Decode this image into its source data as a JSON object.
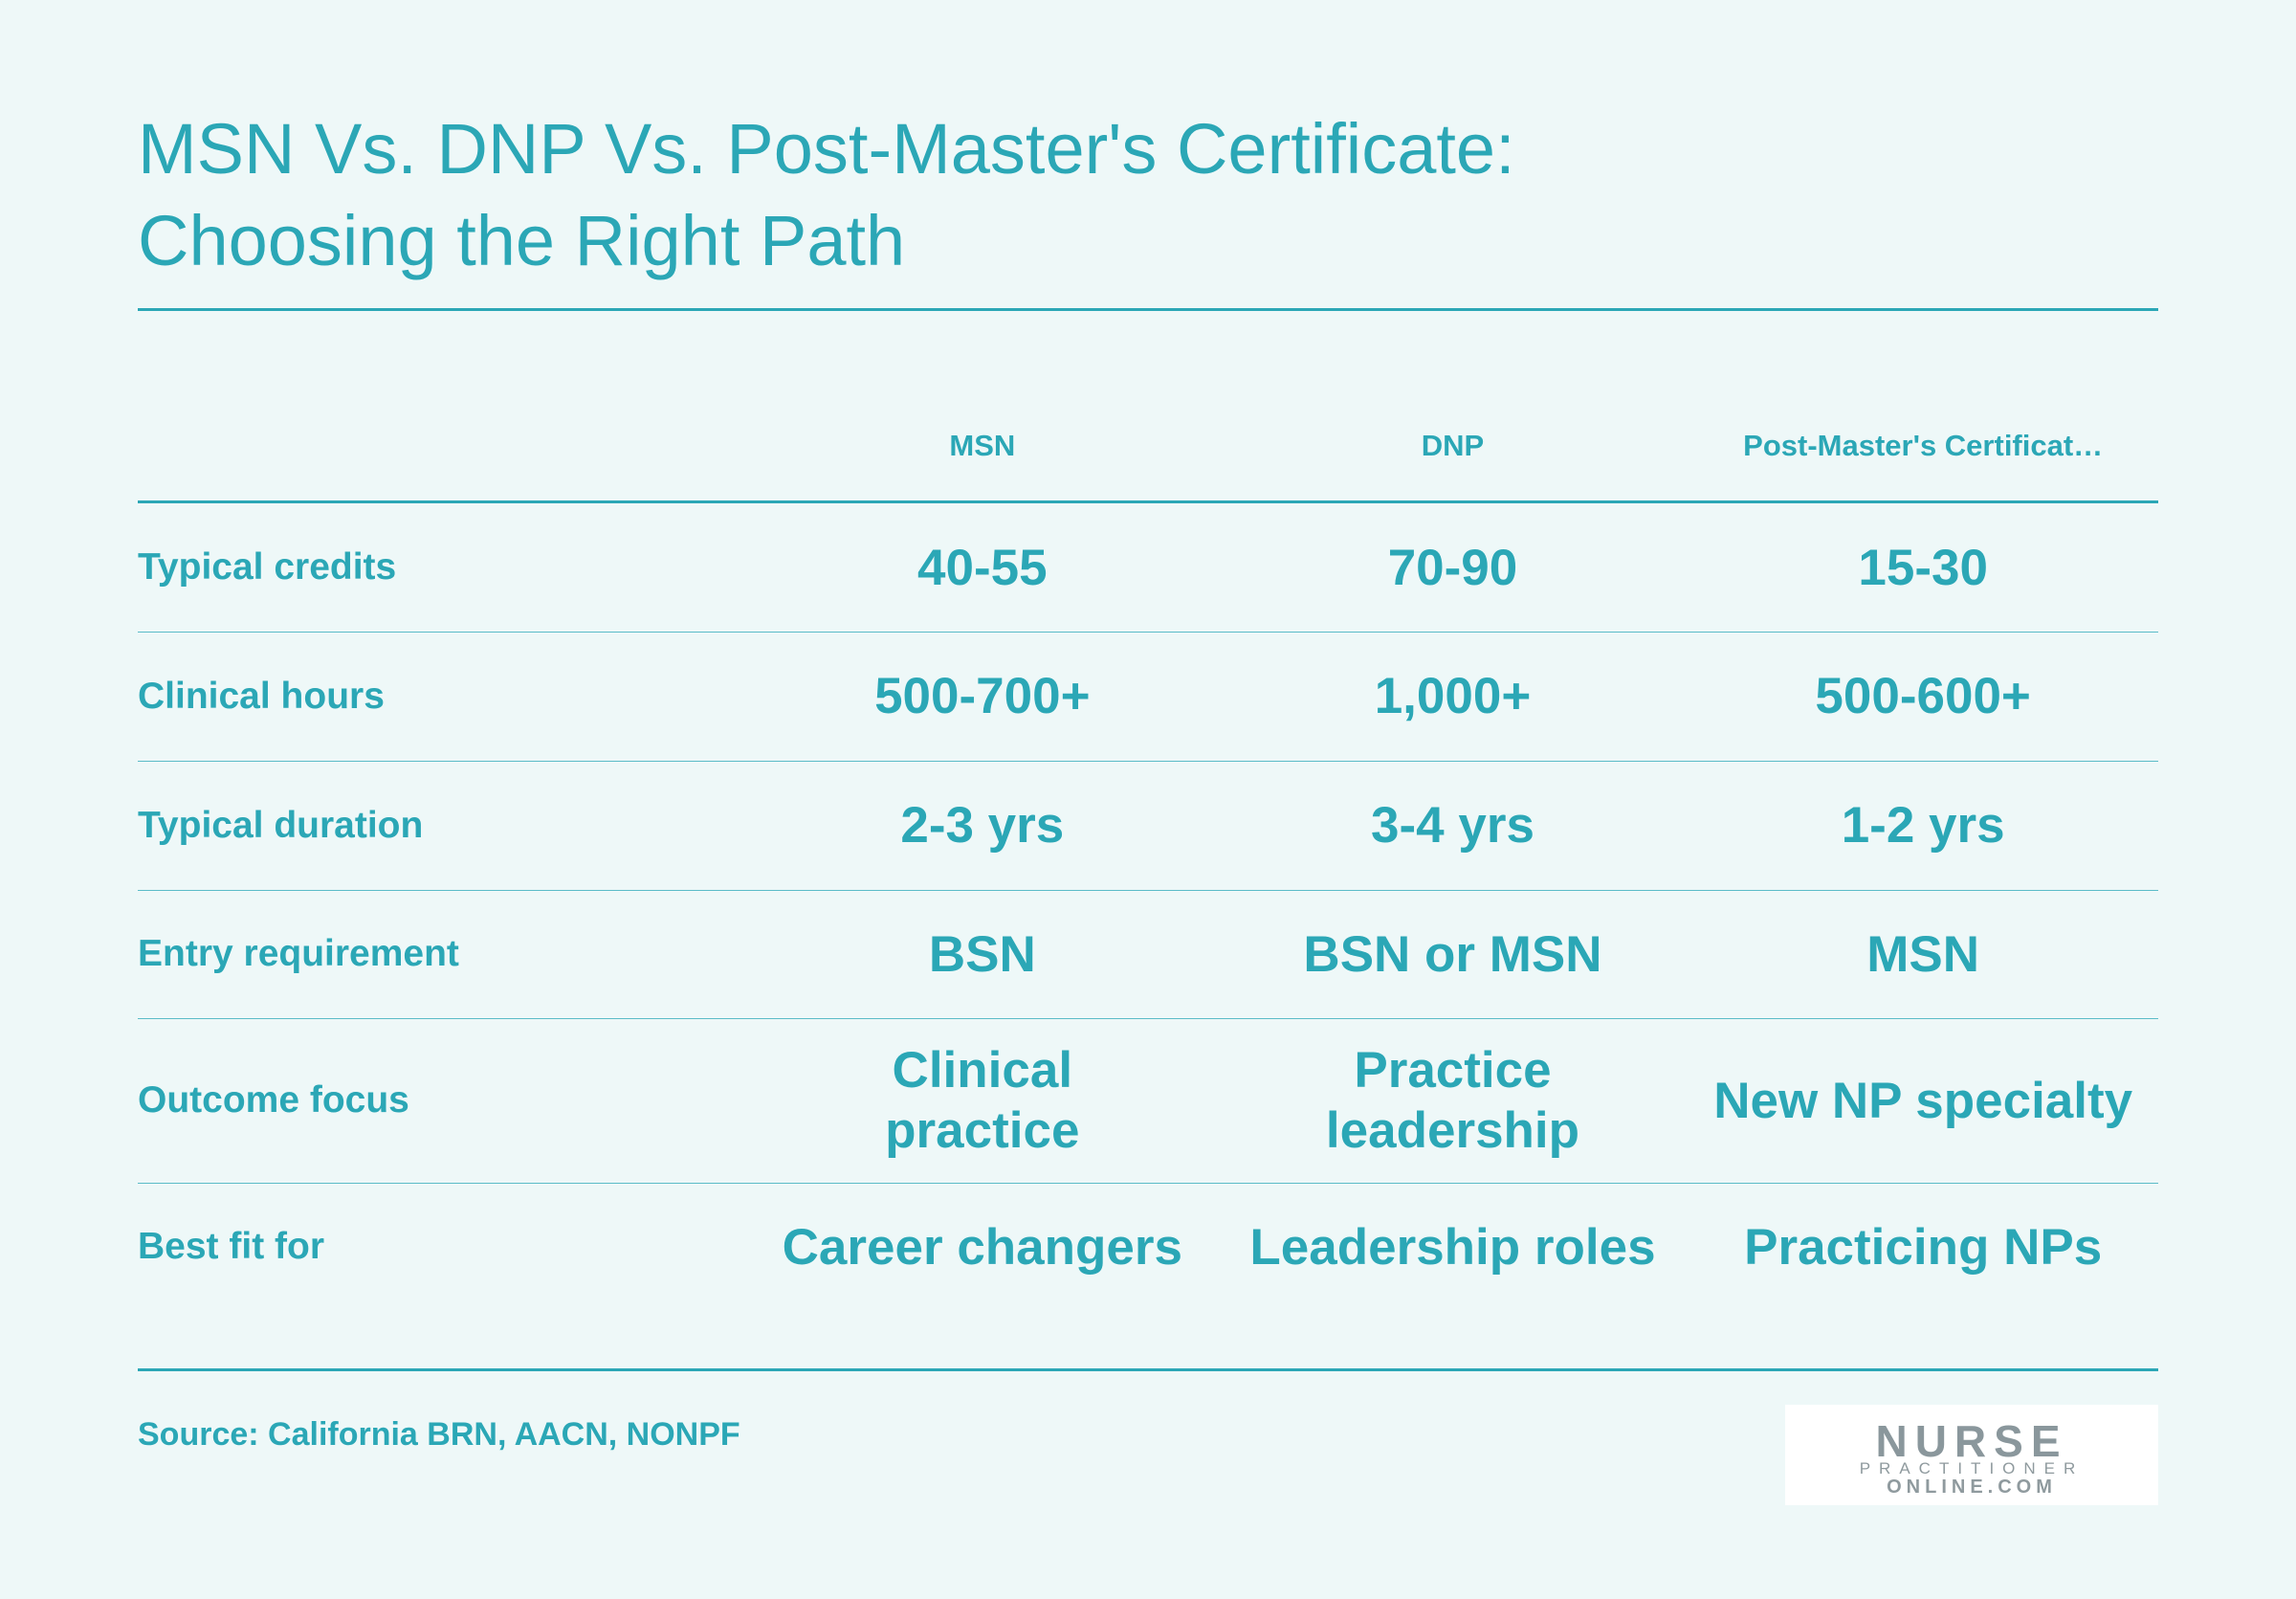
{
  "header": {
    "title_lines": [
      "MSN Vs. DNP Vs. Post-Master's Certificate:",
      "Choosing the Right Path"
    ]
  },
  "table": {
    "columns": [
      "MSN",
      "DNP",
      "Post-Master's Certificat…"
    ],
    "rows": [
      [
        "Typical credits",
        "40-55",
        "70-90",
        "15-30"
      ],
      [
        "Clinical hours",
        "500-700+",
        "1,000+",
        "500-600+"
      ],
      [
        "Typical duration",
        "2-3 yrs",
        "3-4 yrs",
        "1-2 yrs"
      ],
      [
        "Entry requirement",
        "BSN",
        "BSN or MSN",
        "MSN"
      ],
      [
        "Outcome focus",
        "Clinical practice",
        "Practice leadership",
        "New NP specialty"
      ],
      [
        "Best fit for",
        "Career changers",
        "Leadership roles",
        "Practicing NPs"
      ]
    ]
  },
  "footer": {
    "source": "Source: California BRN, AACN, NONPF",
    "logo": [
      "NURSE",
      "PRACTITIONER",
      "ONLINE.COM"
    ]
  }
}
